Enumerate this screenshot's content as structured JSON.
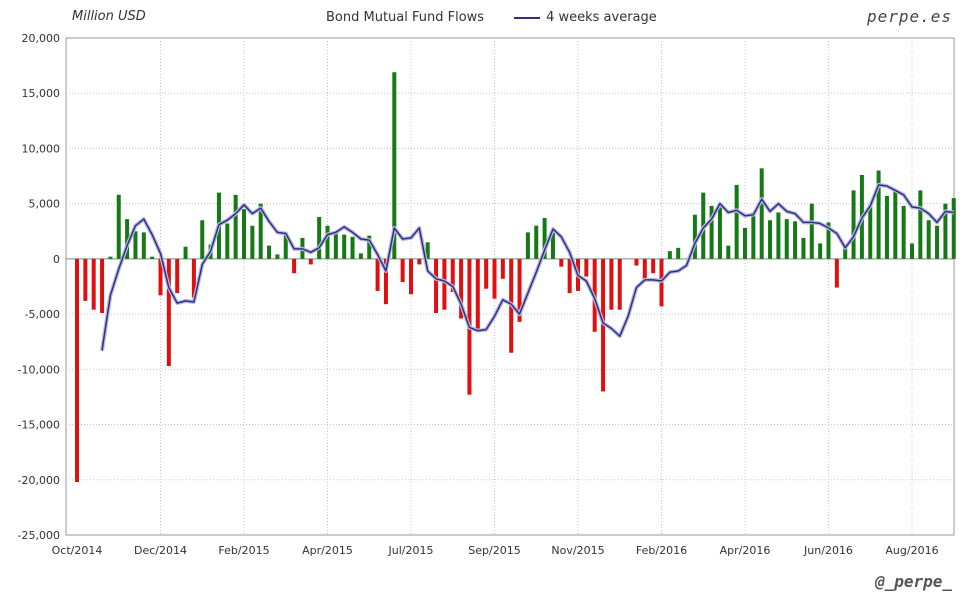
{
  "header": {
    "unit_label": "Million USD",
    "brand": "perpe.es",
    "handle": "@_perpe_"
  },
  "chart_data": {
    "type": "bar",
    "title": "Bond Mutual Fund Flows",
    "xlabel": "",
    "ylabel": "Million USD",
    "ylim": [
      -25000,
      20000
    ],
    "yticks": [
      -25000,
      -20000,
      -15000,
      -10000,
      -5000,
      0,
      5000,
      10000,
      15000,
      20000
    ],
    "ytick_labels": [
      "-25,000",
      "-20,000",
      "-15,000",
      "-10,000",
      "-5,000",
      "0",
      "5,000",
      "10,000",
      "15,000",
      "20,000"
    ],
    "xtick_labels": [
      "Oct/2014",
      "Dec/2014",
      "Feb/2015",
      "Apr/2015",
      "Jul/2015",
      "Sep/2015",
      "Nov/2015",
      "Feb/2016",
      "Apr/2016",
      "Jun/2016",
      "Aug/2016"
    ],
    "xtick_index": [
      0,
      10,
      20,
      30,
      40,
      50,
      60,
      70,
      80,
      90,
      100
    ],
    "grid": true,
    "legend_position": "top-center",
    "colors": {
      "positive": "#157a15",
      "negative": "#e01010",
      "average": "#2e2f86"
    },
    "series": [
      {
        "name": "Bond Mutual Fund Flows",
        "values": [
          -20200,
          -3800,
          -4600,
          -4900,
          200,
          5800,
          3600,
          2500,
          2400,
          200,
          -3300,
          -9700,
          -3100,
          1100,
          -3500,
          3500,
          1300,
          6000,
          3200,
          5800,
          4500,
          3000,
          5000,
          1200,
          400,
          2400,
          -1300,
          1900,
          -500,
          3800,
          3000,
          2500,
          2200,
          2000,
          500,
          2100,
          -2900,
          -4100,
          16900,
          -2100,
          -3200,
          -500,
          1500,
          -4900,
          -4600,
          -3000,
          -5400,
          -12300,
          -6400,
          -2700,
          -3600,
          -1800,
          -8500,
          -5700,
          2400,
          3000,
          3700,
          2500,
          -700,
          -3100,
          -2900,
          -1600,
          -6600,
          -12000,
          -4600,
          -4600,
          0,
          -600,
          -1900,
          -1300,
          -4300,
          700,
          1000,
          0,
          4000,
          6000,
          4800,
          4800,
          1200,
          6700,
          2800,
          4200,
          8200,
          3500,
          4200,
          3600,
          3400,
          1900,
          5000,
          1400,
          3300,
          -2600,
          1000,
          6200,
          7600,
          4900,
          8000,
          5700,
          6300,
          4800,
          1400,
          6200,
          3500,
          3000,
          5000,
          5500
        ]
      },
      {
        "name": "4 weeks average",
        "values": [
          null,
          null,
          null,
          -8300,
          -3300,
          -900,
          1200,
          3000,
          3600,
          2200,
          500,
          -2600,
          -4000,
          -3800,
          -3900,
          -500,
          700,
          3100,
          3500,
          4100,
          4900,
          4100,
          4600,
          3400,
          2400,
          2300,
          900,
          900,
          600,
          1000,
          2200,
          2400,
          2900,
          2400,
          1800,
          1700,
          400,
          -1100,
          2800,
          1800,
          1900,
          2800,
          -1100,
          -1800,
          -2000,
          -2500,
          -4100,
          -6200,
          -6500,
          -6400,
          -5200,
          -3700,
          -4100,
          -5000,
          -3100,
          -1200,
          800,
          2700,
          2000,
          600,
          -1500,
          -2000,
          -3600,
          -5800,
          -6300,
          -7000,
          -5200,
          -2600,
          -1900,
          -1900,
          -2000,
          -1200,
          -1100,
          -600,
          1400,
          2800,
          3600,
          5000,
          4200,
          4400,
          3900,
          4000,
          5400,
          4300,
          5000,
          4300,
          4100,
          3300,
          3300,
          3200,
          2800,
          2300,
          1000,
          2000,
          3700,
          4800,
          6700,
          6600,
          6200,
          5800,
          4700,
          4600,
          4100,
          3300,
          4300,
          4200
        ]
      }
    ]
  }
}
